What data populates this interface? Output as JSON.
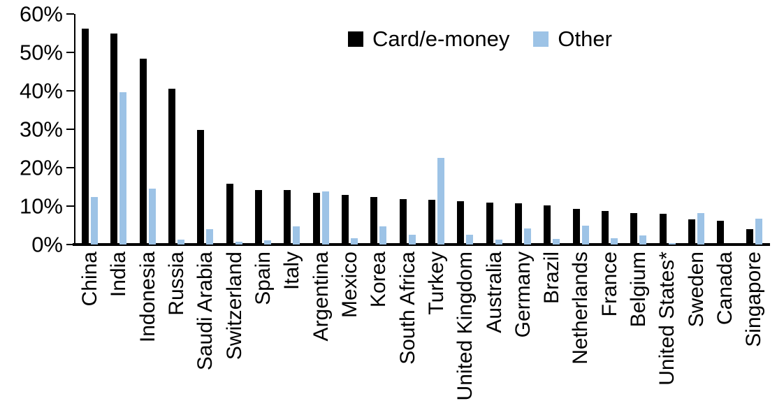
{
  "chart_data": {
    "type": "bar",
    "title": "",
    "xlabel": "",
    "ylabel": "",
    "ylim": [
      0,
      60
    ],
    "grid": false,
    "legend_position": "top-center",
    "y_tick_labels": [
      "0%",
      "10%",
      "20%",
      "30%",
      "40%",
      "50%",
      "60%"
    ],
    "categories": [
      "China",
      "India",
      "Indonesia",
      "Russia",
      "Saudi Arabia",
      "Switzerland",
      "Spain",
      "Italy",
      "Argentina",
      "Mexico",
      "Korea",
      "South Africa",
      "Turkey",
      "United Kingdom",
      "Australia",
      "Germany",
      "Brazil",
      "Netherlands",
      "France",
      "Belgium",
      "United States*",
      "Sweden",
      "Canada",
      "Singapore"
    ],
    "series": [
      {
        "name": "Card/e-money",
        "color": "#000000",
        "values": [
          56.2,
          54.9,
          48.4,
          40.5,
          29.9,
          15.8,
          14.2,
          14.1,
          13.5,
          13.0,
          12.3,
          11.9,
          11.7,
          11.2,
          10.9,
          10.7,
          10.1,
          9.3,
          8.8,
          8.2,
          8.0,
          6.6,
          6.1,
          4.0
        ]
      },
      {
        "name": "Other",
        "color": "#9DC3E6",
        "values": [
          12.4,
          39.7,
          14.6,
          1.2,
          4.0,
          0.7,
          1.1,
          4.7,
          13.9,
          1.6,
          4.7,
          2.5,
          22.6,
          2.5,
          1.2,
          4.1,
          1.4,
          5.0,
          1.7,
          2.3,
          0.3,
          8.2,
          0,
          6.8
        ]
      }
    ]
  }
}
